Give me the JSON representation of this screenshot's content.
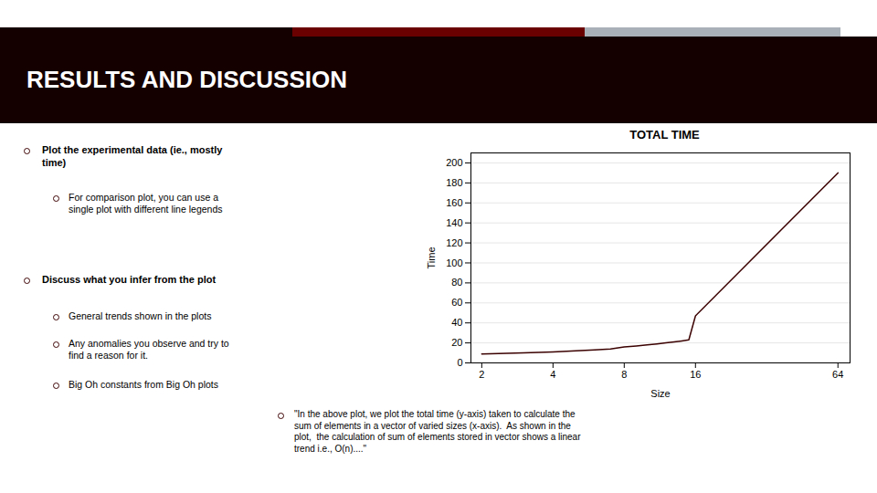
{
  "chart_data": {
    "type": "line",
    "title": "TOTAL TIME",
    "xlabel": "Size",
    "ylabel": "Time",
    "x": [
      2,
      3,
      4,
      5,
      6,
      7,
      8,
      9,
      10,
      11,
      12,
      13,
      14,
      15,
      16,
      64
    ],
    "values": [
      9,
      10,
      11,
      12,
      13,
      14,
      16,
      17,
      18,
      19,
      20,
      21,
      22,
      23,
      47,
      190
    ],
    "color": "#3B0000",
    "log": "x",
    "xlim": [
      1.8,
      72
    ],
    "xticks": [
      2,
      4,
      8,
      16,
      64
    ],
    "ylim": [
      0,
      210
    ],
    "yticks": [
      0,
      20,
      40,
      60,
      80,
      100,
      120,
      140,
      160,
      180,
      200
    ],
    "grid": true,
    "annotations": [
      "RESULTS AND DISCUSSION",
      "Plot the experimental data (ie., mostly\ntime)",
      "For comparison plot, you can use a\nsingle plot with different line legends",
      "Discuss what you infer from the plot",
      "General trends shown in the plots",
      "Any anomalies you observe and try to\nfind a reason for it.",
      "Big Oh constants from Big Oh plots",
      "\"In the above plot, we plot the total time (y-axis) taken to calculate the\nsum of elements in a vector of varied sizes (x-axis).  As shown in the\nplot,  the calculation of sum of elements stored in vector shows a linear\ntrend i.e., O(n)....\""
    ]
  }
}
